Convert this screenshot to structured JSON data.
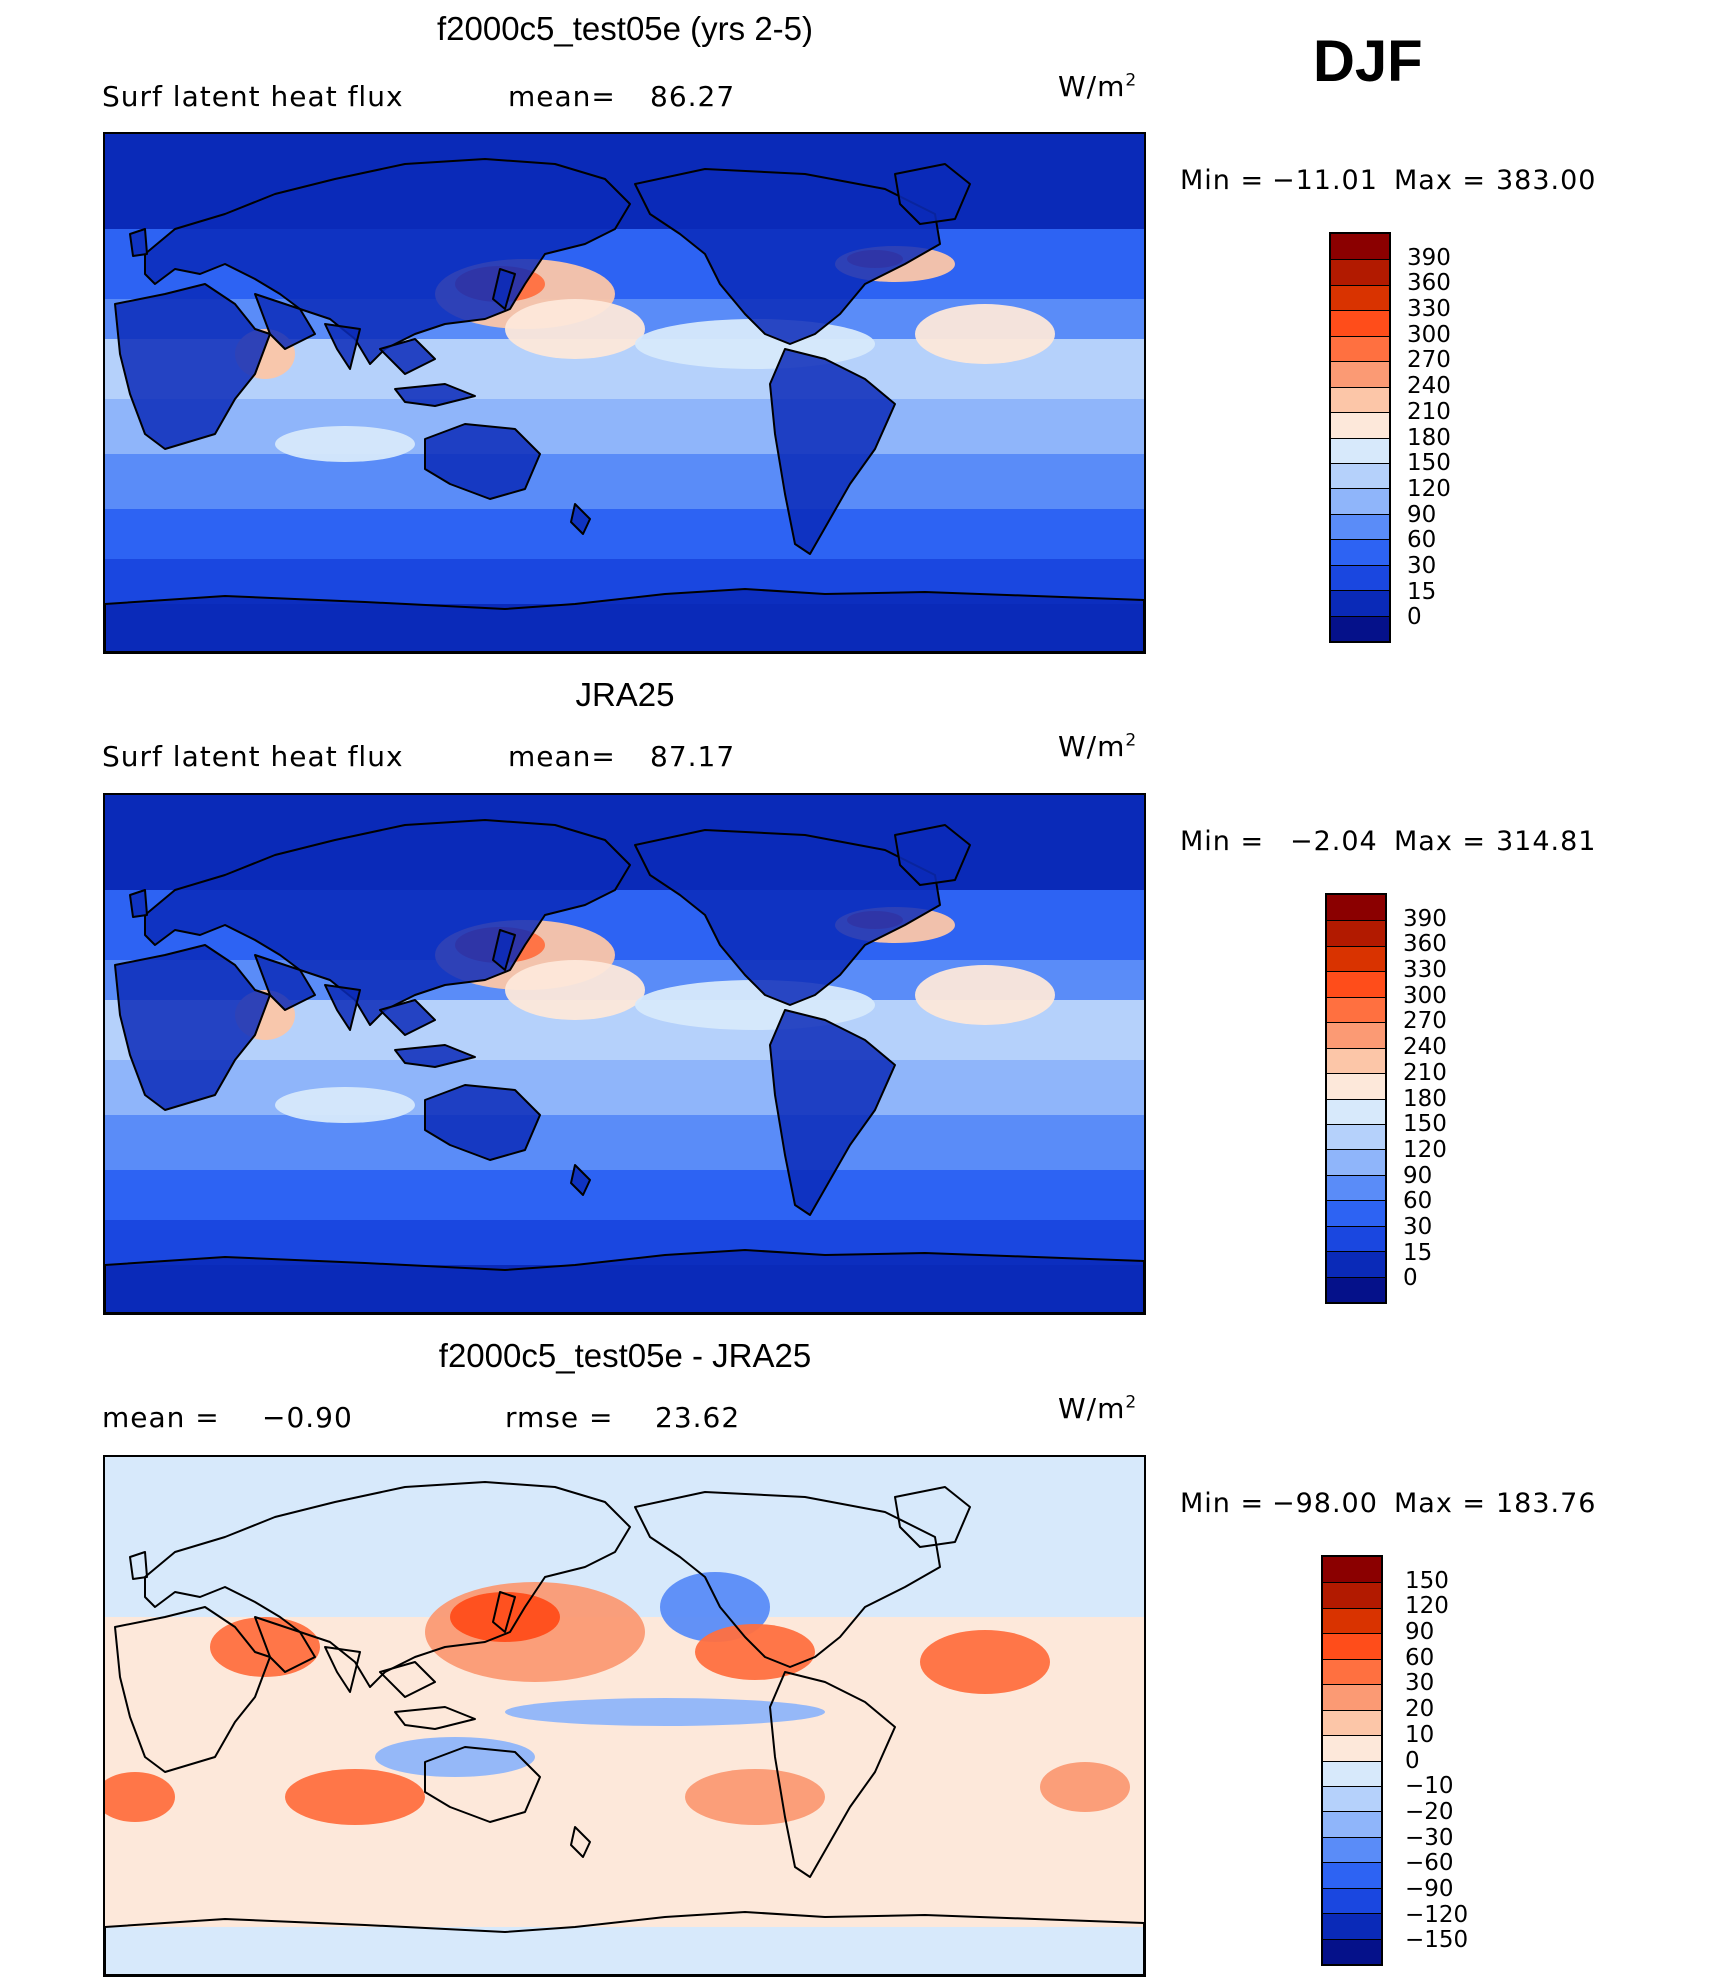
{
  "season_label": "DJF",
  "chart_data": [
    {
      "type": "heatmap",
      "title": "f2000c5_test05e (yrs 2-5)",
      "variable": "Surf latent heat flux",
      "stat_left_label": "mean=",
      "stat_left_value": "86.27",
      "units": "W/m",
      "units_sup": "2",
      "min_label": "Min  =",
      "min_value": "−11.01",
      "max_label": "Max  =",
      "max_value": "383.00",
      "colorbar_levels": [
        "390",
        "360",
        "330",
        "300",
        "270",
        "240",
        "210",
        "180",
        "150",
        "120",
        "90",
        "60",
        "30",
        "15",
        "0"
      ],
      "colorbar_colors": [
        "#8b0000",
        "#b21a00",
        "#d93300",
        "#ff4d1a",
        "#ff7040",
        "#fb9a74",
        "#fcc6a8",
        "#fde8da",
        "#d7e9fb",
        "#b5d1fb",
        "#8fb5fa",
        "#5a8cf8",
        "#2d63f3",
        "#1a47e0",
        "#0a2ab8",
        "#05118a"
      ],
      "map_regime": "absolute"
    },
    {
      "type": "heatmap",
      "title": "JRA25",
      "variable": "Surf latent heat flux",
      "stat_left_label": "mean=",
      "stat_left_value": "87.17",
      "units": "W/m",
      "units_sup": "2",
      "min_label": "Min  =",
      "min_value": "−2.04",
      "max_label": "Max  =",
      "max_value": "314.81",
      "colorbar_levels": [
        "390",
        "360",
        "330",
        "300",
        "270",
        "240",
        "210",
        "180",
        "150",
        "120",
        "90",
        "60",
        "30",
        "15",
        "0"
      ],
      "colorbar_colors": [
        "#8b0000",
        "#b21a00",
        "#d93300",
        "#ff4d1a",
        "#ff7040",
        "#fb9a74",
        "#fcc6a8",
        "#fde8da",
        "#d7e9fb",
        "#b5d1fb",
        "#8fb5fa",
        "#5a8cf8",
        "#2d63f3",
        "#1a47e0",
        "#0a2ab8",
        "#05118a"
      ],
      "map_regime": "absolute"
    },
    {
      "type": "heatmap",
      "title": "f2000c5_test05e - JRA25",
      "stat_left_label": "mean  =",
      "stat_left_value": "−0.90",
      "stat_right_label": "rmse  =",
      "stat_right_value": "23.62",
      "units": "W/m",
      "units_sup": "2",
      "min_label": "Min  =",
      "min_value": "−98.00",
      "max_label": "Max  =",
      "max_value": "183.76",
      "colorbar_levels": [
        "150",
        "120",
        "90",
        "60",
        "30",
        "20",
        "10",
        "0",
        "−10",
        "−20",
        "−30",
        "−60",
        "−90",
        "−120",
        "−150"
      ],
      "colorbar_colors": [
        "#8b0000",
        "#b21a00",
        "#d93300",
        "#ff4d1a",
        "#ff7040",
        "#fb9a74",
        "#fcc6a8",
        "#fde8da",
        "#d7e9fb",
        "#b5d1fb",
        "#8fb5fa",
        "#5a8cf8",
        "#2d63f3",
        "#1a47e0",
        "#0a2ab8",
        "#05118a"
      ],
      "map_regime": "difference"
    }
  ]
}
